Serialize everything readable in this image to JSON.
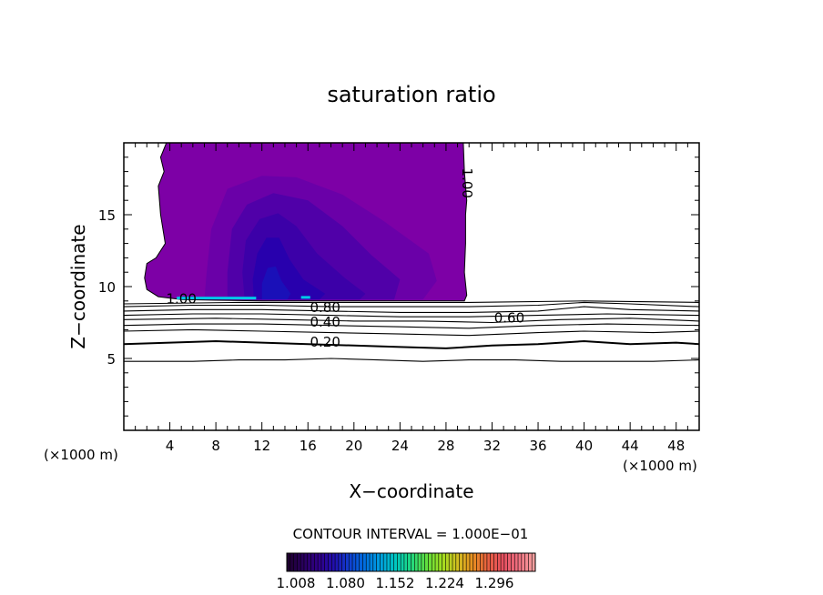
{
  "chart_data": {
    "type": "contour",
    "title": "saturation ratio",
    "xlabel": "X−coordinate",
    "ylabel": "Z−coordinate",
    "x_unit_left": "(×1000 m)",
    "x_unit_right": "(×1000 m)",
    "xlim": [
      0,
      50
    ],
    "ylim": [
      0,
      20
    ],
    "x_ticks": [
      4,
      8,
      12,
      16,
      20,
      24,
      28,
      32,
      36,
      40,
      44,
      48
    ],
    "y_ticks": [
      5,
      10,
      15
    ],
    "contour_interval_text": "CONTOUR INTERVAL = 1.000E−01",
    "contour_labels": [
      {
        "text": "1.00",
        "x": 5.0,
        "y": 9.1
      },
      {
        "text": "0.80",
        "x": 17.5,
        "y": 8.5
      },
      {
        "text": "0.40",
        "x": 17.5,
        "y": 7.5
      },
      {
        "text": "0.20",
        "x": 17.5,
        "y": 6.1
      },
      {
        "text": "0.60",
        "x": 33.5,
        "y": 7.8
      },
      {
        "text": "1.00",
        "x": 29.8,
        "y": 17.2,
        "rotated": true
      }
    ],
    "contour_lines": [
      {
        "level": 0.1,
        "points": [
          [
            0,
            4.8
          ],
          [
            6,
            4.8
          ],
          [
            10,
            4.9
          ],
          [
            14,
            4.9
          ],
          [
            18,
            5.0
          ],
          [
            22,
            4.9
          ],
          [
            26,
            4.8
          ],
          [
            30,
            4.9
          ],
          [
            34,
            4.9
          ],
          [
            38,
            4.8
          ],
          [
            42,
            4.8
          ],
          [
            46,
            4.8
          ],
          [
            50,
            4.9
          ]
        ]
      },
      {
        "level": 0.2,
        "points": [
          [
            0,
            6.0
          ],
          [
            4,
            6.1
          ],
          [
            8,
            6.2
          ],
          [
            12,
            6.1
          ],
          [
            16,
            6.0
          ],
          [
            20,
            5.9
          ],
          [
            24,
            5.8
          ],
          [
            28,
            5.7
          ],
          [
            32,
            5.9
          ],
          [
            36,
            6.0
          ],
          [
            40,
            6.2
          ],
          [
            44,
            6.0
          ],
          [
            48,
            6.1
          ],
          [
            50,
            6.0
          ]
        ]
      },
      {
        "level": 0.3,
        "points": [
          [
            0,
            6.9
          ],
          [
            6,
            7.0
          ],
          [
            12,
            6.9
          ],
          [
            18,
            6.8
          ],
          [
            24,
            6.7
          ],
          [
            30,
            6.6
          ],
          [
            36,
            6.8
          ],
          [
            40,
            6.9
          ],
          [
            46,
            6.8
          ],
          [
            50,
            6.9
          ]
        ]
      },
      {
        "level": 0.4,
        "points": [
          [
            0,
            7.3
          ],
          [
            6,
            7.4
          ],
          [
            12,
            7.4
          ],
          [
            18,
            7.3
          ],
          [
            24,
            7.2
          ],
          [
            30,
            7.1
          ],
          [
            36,
            7.3
          ],
          [
            42,
            7.4
          ],
          [
            50,
            7.3
          ]
        ]
      },
      {
        "level": 0.5,
        "points": [
          [
            0,
            7.7
          ],
          [
            8,
            7.8
          ],
          [
            14,
            7.7
          ],
          [
            20,
            7.6
          ],
          [
            26,
            7.6
          ],
          [
            32,
            7.5
          ],
          [
            38,
            7.7
          ],
          [
            44,
            7.8
          ],
          [
            50,
            7.6
          ]
        ]
      },
      {
        "level": 0.6,
        "points": [
          [
            0,
            8.0
          ],
          [
            6,
            8.1
          ],
          [
            12,
            8.1
          ],
          [
            18,
            8.0
          ],
          [
            24,
            7.9
          ],
          [
            30,
            7.9
          ],
          [
            36,
            8.0
          ],
          [
            42,
            8.1
          ],
          [
            50,
            8.0
          ]
        ]
      },
      {
        "level": 0.7,
        "points": [
          [
            0,
            8.3
          ],
          [
            6,
            8.4
          ],
          [
            12,
            8.4
          ],
          [
            18,
            8.3
          ],
          [
            24,
            8.2
          ],
          [
            30,
            8.2
          ],
          [
            36,
            8.3
          ],
          [
            40,
            8.6
          ],
          [
            44,
            8.4
          ],
          [
            50,
            8.3
          ]
        ]
      },
      {
        "level": 0.8,
        "points": [
          [
            0,
            8.6
          ],
          [
            6,
            8.7
          ],
          [
            12,
            8.7
          ],
          [
            18,
            8.6
          ],
          [
            24,
            8.6
          ],
          [
            30,
            8.6
          ],
          [
            36,
            8.7
          ],
          [
            40,
            8.9
          ],
          [
            44,
            8.8
          ],
          [
            50,
            8.6
          ]
        ]
      },
      {
        "level": 0.9,
        "points": [
          [
            0,
            8.8
          ],
          [
            10,
            8.9
          ],
          [
            20,
            8.9
          ],
          [
            30,
            8.9
          ],
          [
            40,
            9.0
          ],
          [
            50,
            8.9
          ]
        ]
      }
    ],
    "regions": [
      {
        "level": 1.008,
        "color": "#7d00a6",
        "points": [
          [
            3.7,
            20
          ],
          [
            3.2,
            19
          ],
          [
            3.5,
            18
          ],
          [
            3.0,
            17
          ],
          [
            3.2,
            15
          ],
          [
            3.6,
            13
          ],
          [
            2.8,
            12
          ],
          [
            2.0,
            11.6
          ],
          [
            1.8,
            10.6
          ],
          [
            2.0,
            9.8
          ],
          [
            3.0,
            9.3
          ],
          [
            5,
            9.1
          ],
          [
            8,
            9.05
          ],
          [
            12,
            9.0
          ],
          [
            16,
            9.0
          ],
          [
            20,
            9.0
          ],
          [
            24,
            9.0
          ],
          [
            27,
            9.0
          ],
          [
            29.6,
            9.0
          ],
          [
            29.8,
            9.4
          ],
          [
            29.6,
            11
          ],
          [
            29.7,
            13
          ],
          [
            29.7,
            15
          ],
          [
            29.8,
            16
          ],
          [
            29.6,
            18
          ],
          [
            29.5,
            20
          ]
        ]
      },
      {
        "level": 1.04,
        "color": "#6a00a8",
        "points": [
          [
            7,
            9.1
          ],
          [
            7.2,
            11
          ],
          [
            7.6,
            14
          ],
          [
            9,
            16.8
          ],
          [
            12,
            17.7
          ],
          [
            15,
            17.6
          ],
          [
            19,
            16.4
          ],
          [
            22.5,
            14.6
          ],
          [
            26.5,
            12.3
          ],
          [
            27.2,
            10.4
          ],
          [
            26,
            9.1
          ]
        ]
      },
      {
        "level": 1.06,
        "color": "#5000a8",
        "points": [
          [
            9,
            9.1
          ],
          [
            9.0,
            11
          ],
          [
            9.4,
            14
          ],
          [
            10.7,
            15.7
          ],
          [
            13,
            16.5
          ],
          [
            16,
            16
          ],
          [
            19,
            14.2
          ],
          [
            21.5,
            12.2
          ],
          [
            24,
            10.5
          ],
          [
            23.5,
            9.1
          ]
        ]
      },
      {
        "level": 1.08,
        "color": "#3c00a8",
        "points": [
          [
            10.5,
            9.1
          ],
          [
            10.3,
            11
          ],
          [
            10.6,
            13.2
          ],
          [
            11.8,
            14.7
          ],
          [
            13.4,
            15.1
          ],
          [
            15,
            14.2
          ],
          [
            16.8,
            12.3
          ],
          [
            19.2,
            10.6
          ],
          [
            21,
            9.5
          ],
          [
            20.5,
            9.1
          ]
        ]
      },
      {
        "level": 1.1,
        "color": "#2800ad",
        "points": [
          [
            11.3,
            9.1
          ],
          [
            11.2,
            10.5
          ],
          [
            11.6,
            12.3
          ],
          [
            12.4,
            13.4
          ],
          [
            13.5,
            13.4
          ],
          [
            14.4,
            11.9
          ],
          [
            15.6,
            10.5
          ],
          [
            17.5,
            9.5
          ],
          [
            17,
            9.1
          ]
        ]
      },
      {
        "level": 1.12,
        "color": "#1a10b8",
        "points": [
          [
            12.0,
            9.1
          ],
          [
            12.0,
            10.2
          ],
          [
            12.5,
            11.3
          ],
          [
            13.2,
            11.4
          ],
          [
            13.7,
            10.4
          ],
          [
            14.5,
            9.5
          ],
          [
            14.2,
            9.1
          ]
        ]
      }
    ],
    "colorbar": {
      "labels": [
        "1.008",
        "1.080",
        "1.152",
        "1.224",
        "1.296"
      ],
      "colors": [
        "#1e0030",
        "#2a0060",
        "#30008a",
        "#2010b0",
        "#1040d0",
        "#0070e0",
        "#00a0e0",
        "#00c8c0",
        "#20d880",
        "#60e040",
        "#a0e020",
        "#d0c020",
        "#e89020",
        "#e86040",
        "#e85060",
        "#f07080",
        "#f8a0a0"
      ]
    }
  }
}
